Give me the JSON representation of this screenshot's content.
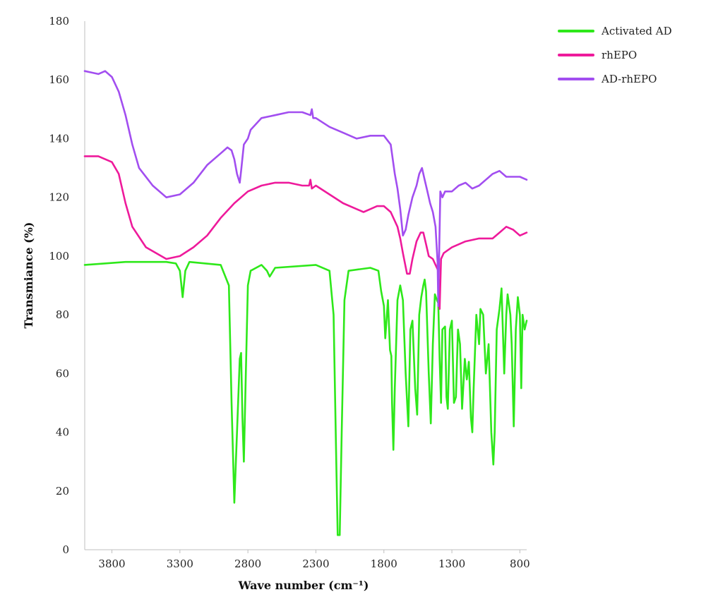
{
  "chart_data": {
    "type": "line",
    "xlabel": "Wave number (cm⁻¹)",
    "ylabel": "Transmiance (%)",
    "xlim": [
      4000,
      750
    ],
    "ylim": [
      0,
      180
    ],
    "x_reversed": true,
    "x_ticks": [
      3800,
      3300,
      2800,
      2300,
      1800,
      1300,
      800
    ],
    "x_tick_labels": [
      "3800",
      "3300",
      "2800",
      "2300",
      "1800",
      "1300",
      "800"
    ],
    "y_ticks": [
      0,
      20,
      40,
      60,
      80,
      100,
      120,
      140,
      160,
      180
    ],
    "y_tick_labels": [
      "0",
      "20",
      "40",
      "60",
      "80",
      "100",
      "120",
      "140",
      "160",
      "180"
    ],
    "grid": false,
    "legend_position": "top-right",
    "series": [
      {
        "name": "Activated AD",
        "color": "#2ee81a",
        "points": [
          [
            4000,
            97
          ],
          [
            3700,
            98
          ],
          [
            3400,
            98
          ],
          [
            3330,
            97.5
          ],
          [
            3300,
            95
          ],
          [
            3280,
            86
          ],
          [
            3260,
            95
          ],
          [
            3230,
            98
          ],
          [
            3000,
            97
          ],
          [
            2940,
            90
          ],
          [
            2920,
            50
          ],
          [
            2900,
            16
          ],
          [
            2880,
            40
          ],
          [
            2860,
            65
          ],
          [
            2850,
            67
          ],
          [
            2840,
            45
          ],
          [
            2830,
            30
          ],
          [
            2815,
            60
          ],
          [
            2800,
            90
          ],
          [
            2780,
            95
          ],
          [
            2700,
            97
          ],
          [
            2660,
            95
          ],
          [
            2640,
            93
          ],
          [
            2600,
            96
          ],
          [
            2300,
            97
          ],
          [
            2200,
            95
          ],
          [
            2170,
            80
          ],
          [
            2150,
            30
          ],
          [
            2140,
            5
          ],
          [
            2125,
            5
          ],
          [
            2110,
            40
          ],
          [
            2090,
            85
          ],
          [
            2060,
            95
          ],
          [
            1900,
            96
          ],
          [
            1840,
            95
          ],
          [
            1820,
            88
          ],
          [
            1800,
            83
          ],
          [
            1790,
            72
          ],
          [
            1770,
            85
          ],
          [
            1755,
            68
          ],
          [
            1745,
            66
          ],
          [
            1740,
            50
          ],
          [
            1730,
            34
          ],
          [
            1720,
            55
          ],
          [
            1700,
            85
          ],
          [
            1680,
            90
          ],
          [
            1660,
            85
          ],
          [
            1640,
            60
          ],
          [
            1620,
            42
          ],
          [
            1605,
            75
          ],
          [
            1590,
            78
          ],
          [
            1570,
            55
          ],
          [
            1555,
            46
          ],
          [
            1540,
            80
          ],
          [
            1525,
            86
          ],
          [
            1510,
            90
          ],
          [
            1500,
            92
          ],
          [
            1490,
            88
          ],
          [
            1470,
            60
          ],
          [
            1455,
            43
          ],
          [
            1440,
            70
          ],
          [
            1425,
            87
          ],
          [
            1410,
            85
          ],
          [
            1400,
            84
          ],
          [
            1390,
            65
          ],
          [
            1380,
            50
          ],
          [
            1370,
            75
          ],
          [
            1350,
            76
          ],
          [
            1340,
            52
          ],
          [
            1330,
            48
          ],
          [
            1315,
            75
          ],
          [
            1300,
            78
          ],
          [
            1285,
            50
          ],
          [
            1270,
            52
          ],
          [
            1255,
            75
          ],
          [
            1240,
            70
          ],
          [
            1225,
            48
          ],
          [
            1205,
            65
          ],
          [
            1190,
            58
          ],
          [
            1175,
            64
          ],
          [
            1160,
            45
          ],
          [
            1150,
            40
          ],
          [
            1140,
            55
          ],
          [
            1120,
            80
          ],
          [
            1100,
            70
          ],
          [
            1090,
            82
          ],
          [
            1070,
            80
          ],
          [
            1050,
            60
          ],
          [
            1030,
            70
          ],
          [
            1010,
            40
          ],
          [
            995,
            29
          ],
          [
            985,
            40
          ],
          [
            970,
            75
          ],
          [
            950,
            82
          ],
          [
            935,
            89
          ],
          [
            915,
            60
          ],
          [
            900,
            80
          ],
          [
            890,
            87
          ],
          [
            870,
            80
          ],
          [
            860,
            70
          ],
          [
            845,
            42
          ],
          [
            830,
            75
          ],
          [
            815,
            86
          ],
          [
            800,
            80
          ],
          [
            790,
            55
          ],
          [
            780,
            80
          ],
          [
            765,
            75
          ],
          [
            750,
            78
          ]
        ]
      },
      {
        "name": "rhEPO",
        "color": "#ee1a9b",
        "points": [
          [
            4000,
            134
          ],
          [
            3900,
            134
          ],
          [
            3850,
            133
          ],
          [
            3800,
            132
          ],
          [
            3750,
            128
          ],
          [
            3700,
            118
          ],
          [
            3650,
            110
          ],
          [
            3550,
            103
          ],
          [
            3400,
            99
          ],
          [
            3300,
            100
          ],
          [
            3200,
            103
          ],
          [
            3100,
            107
          ],
          [
            3000,
            113
          ],
          [
            2900,
            118
          ],
          [
            2800,
            122
          ],
          [
            2700,
            124
          ],
          [
            2600,
            125
          ],
          [
            2500,
            125
          ],
          [
            2400,
            124
          ],
          [
            2350,
            124
          ],
          [
            2340,
            126
          ],
          [
            2330,
            123
          ],
          [
            2300,
            124
          ],
          [
            2200,
            121
          ],
          [
            2100,
            118
          ],
          [
            2000,
            116
          ],
          [
            1950,
            115
          ],
          [
            1900,
            116
          ],
          [
            1850,
            117
          ],
          [
            1800,
            117
          ],
          [
            1750,
            115
          ],
          [
            1700,
            110
          ],
          [
            1680,
            106
          ],
          [
            1660,
            101
          ],
          [
            1630,
            94
          ],
          [
            1610,
            94
          ],
          [
            1590,
            99
          ],
          [
            1560,
            105
          ],
          [
            1530,
            108
          ],
          [
            1510,
            108
          ],
          [
            1490,
            104
          ],
          [
            1470,
            100
          ],
          [
            1440,
            99
          ],
          [
            1420,
            97
          ],
          [
            1400,
            95
          ],
          [
            1390,
            82
          ],
          [
            1380,
            99
          ],
          [
            1360,
            101
          ],
          [
            1300,
            103
          ],
          [
            1200,
            105
          ],
          [
            1100,
            106
          ],
          [
            1000,
            106
          ],
          [
            950,
            108
          ],
          [
            900,
            110
          ],
          [
            850,
            109
          ],
          [
            800,
            107
          ],
          [
            750,
            108
          ]
        ]
      },
      {
        "name": "AD-rhEPO",
        "color": "#a24ef0",
        "points": [
          [
            4000,
            163
          ],
          [
            3900,
            162
          ],
          [
            3850,
            163
          ],
          [
            3800,
            161
          ],
          [
            3750,
            156
          ],
          [
            3700,
            148
          ],
          [
            3650,
            138
          ],
          [
            3600,
            130
          ],
          [
            3500,
            124
          ],
          [
            3400,
            120
          ],
          [
            3300,
            121
          ],
          [
            3200,
            125
          ],
          [
            3100,
            131
          ],
          [
            3000,
            135
          ],
          [
            2950,
            137
          ],
          [
            2920,
            136
          ],
          [
            2900,
            133
          ],
          [
            2880,
            128
          ],
          [
            2860,
            125
          ],
          [
            2850,
            129
          ],
          [
            2830,
            138
          ],
          [
            2800,
            140
          ],
          [
            2780,
            143
          ],
          [
            2700,
            147
          ],
          [
            2600,
            148
          ],
          [
            2500,
            149
          ],
          [
            2400,
            149
          ],
          [
            2340,
            148
          ],
          [
            2330,
            150
          ],
          [
            2320,
            147
          ],
          [
            2300,
            147
          ],
          [
            2200,
            144
          ],
          [
            2100,
            142
          ],
          [
            2000,
            140
          ],
          [
            1900,
            141
          ],
          [
            1850,
            141
          ],
          [
            1800,
            141
          ],
          [
            1750,
            138
          ],
          [
            1720,
            128
          ],
          [
            1700,
            123
          ],
          [
            1680,
            116
          ],
          [
            1660,
            107
          ],
          [
            1640,
            109
          ],
          [
            1620,
            114
          ],
          [
            1590,
            120
          ],
          [
            1560,
            124
          ],
          [
            1540,
            128
          ],
          [
            1520,
            130
          ],
          [
            1500,
            126
          ],
          [
            1480,
            122
          ],
          [
            1460,
            118
          ],
          [
            1440,
            115
          ],
          [
            1420,
            110
          ],
          [
            1405,
            98
          ],
          [
            1400,
            83
          ],
          [
            1395,
            98
          ],
          [
            1385,
            122
          ],
          [
            1370,
            120
          ],
          [
            1350,
            122
          ],
          [
            1300,
            122
          ],
          [
            1250,
            124
          ],
          [
            1200,
            125
          ],
          [
            1150,
            123
          ],
          [
            1100,
            124
          ],
          [
            1050,
            126
          ],
          [
            1000,
            128
          ],
          [
            950,
            129
          ],
          [
            900,
            127
          ],
          [
            850,
            127
          ],
          [
            800,
            127
          ],
          [
            750,
            126
          ]
        ]
      }
    ]
  }
}
